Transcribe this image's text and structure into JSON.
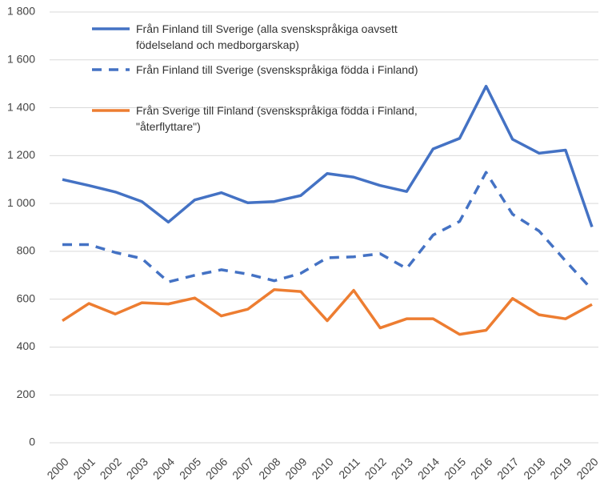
{
  "chart_data": {
    "type": "line",
    "categories": [
      "2000",
      "2001",
      "2002",
      "2003",
      "2004",
      "2005",
      "2006",
      "2007",
      "2008",
      "2009",
      "2010",
      "2011",
      "2012",
      "2013",
      "2014",
      "2015",
      "2016",
      "2017",
      "2018",
      "2019",
      "2020"
    ],
    "series": [
      {
        "name": "Från Finland till Sverige (alla svenskspråkiga oavsett födelseland och medborgarskap)",
        "color": "#4472c4",
        "style": "solid",
        "values": [
          1100,
          1075,
          1048,
          1008,
          922,
          1015,
          1045,
          1003,
          1008,
          1033,
          1125,
          1110,
          1075,
          1050,
          1228,
          1272,
          1490,
          1268,
          1210,
          1223,
          902
        ]
      },
      {
        "name": "Från Finland till Sverige (svenskspråkiga födda i Finland)",
        "color": "#4472c4",
        "style": "dashed",
        "values": [
          828,
          828,
          795,
          770,
          672,
          700,
          723,
          705,
          677,
          708,
          773,
          777,
          790,
          728,
          868,
          925,
          1130,
          955,
          885,
          760,
          640
        ]
      },
      {
        "name": "Från Sverige till Finland (svenskspråkiga födda i Finland, \"återflyttare\")",
        "color": "#ed7d31",
        "style": "solid",
        "values": [
          510,
          582,
          538,
          585,
          580,
          605,
          530,
          558,
          640,
          632,
          510,
          637,
          480,
          518,
          518,
          453,
          470,
          603,
          535,
          518,
          578
        ]
      }
    ],
    "ylim": [
      0,
      1800
    ],
    "yticks": [
      0,
      200,
      400,
      600,
      800,
      {
        "value": 1000,
        "label": "1 000"
      },
      {
        "value": 1200,
        "label": "1 200"
      },
      {
        "value": 1400,
        "label": "1 400"
      },
      {
        "value": 1600,
        "label": "1 600"
      },
      {
        "value": 1800,
        "label": "1 800"
      }
    ],
    "grid": true
  }
}
